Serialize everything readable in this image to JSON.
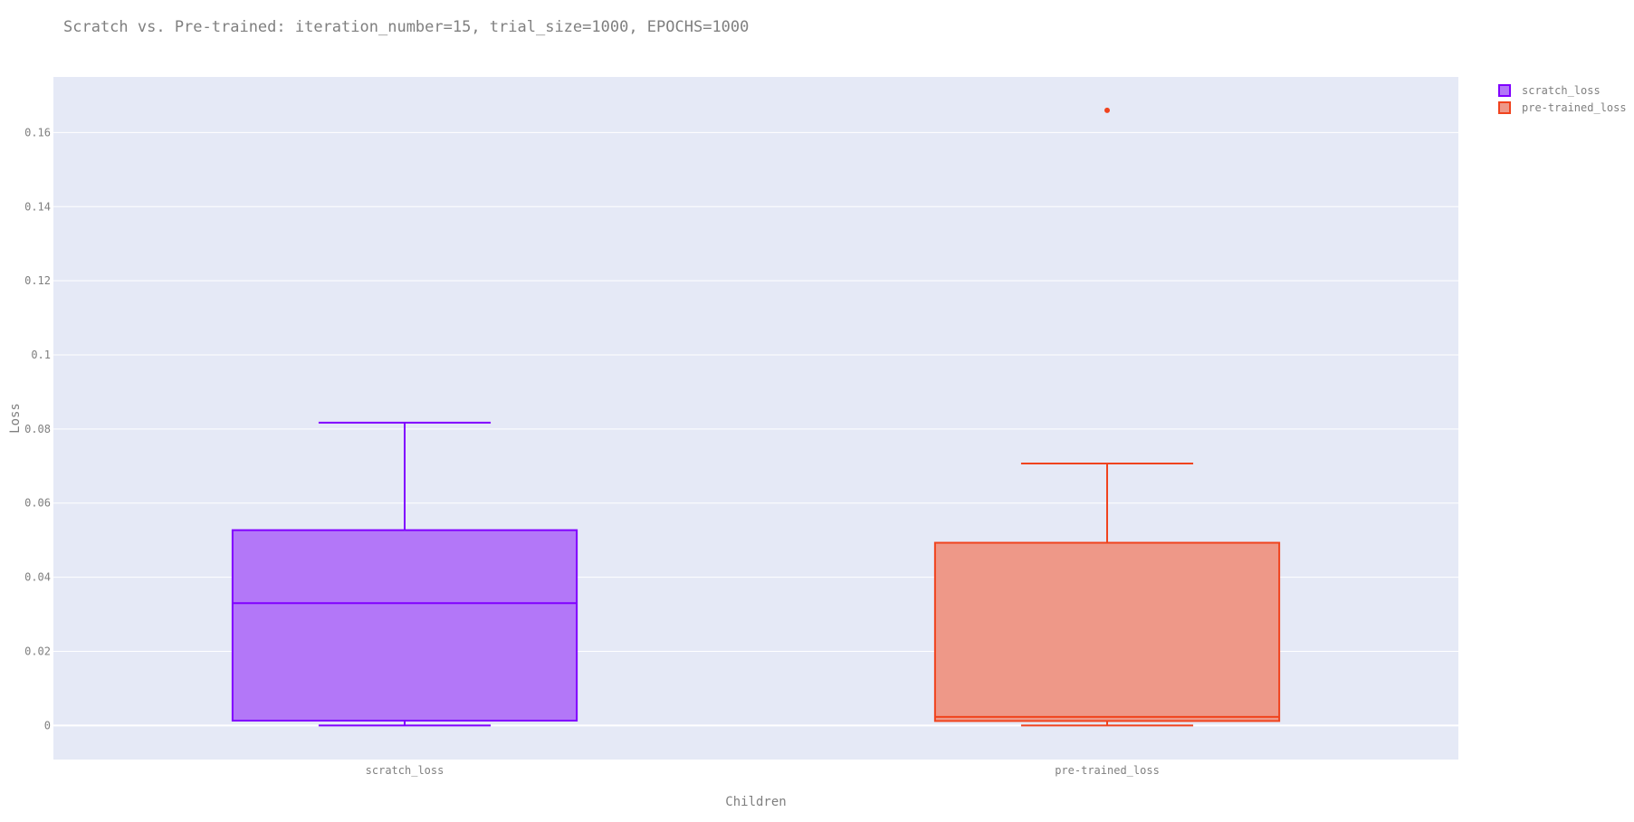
{
  "chart_data": {
    "type": "box",
    "title": "Scratch vs. Pre-trained: iteration_number=15, trial_size=1000, EPOCHS=1000",
    "xlabel": "Children",
    "ylabel": "Loss",
    "ylim": [
      -0.0092,
      0.175
    ],
    "yticks": [
      0,
      0.02,
      0.04,
      0.06,
      0.08,
      0.1,
      0.12,
      0.14,
      0.16
    ],
    "ytick_labels": [
      "0",
      "0.02",
      "0.04",
      "0.06",
      "0.08",
      "0.1",
      "0.12",
      "0.14",
      "0.16"
    ],
    "categories": [
      "scratch_loss",
      "pre-trained_loss"
    ],
    "grid": true,
    "legend_position": "top-right",
    "series": [
      {
        "name": "scratch_loss",
        "color": "#8000ff",
        "fill": "#b377f8",
        "min": 0.0,
        "q1": 0.0013,
        "median": 0.033,
        "q3": 0.0527,
        "max": 0.0817,
        "outliers": []
      },
      {
        "name": "pre-trained_loss",
        "color": "#f0431e",
        "fill": "#ee9888",
        "min": 0.0,
        "q1": 0.0012,
        "median": 0.0023,
        "q3": 0.0493,
        "max": 0.0707,
        "outliers": [
          0.166
        ]
      }
    ]
  }
}
